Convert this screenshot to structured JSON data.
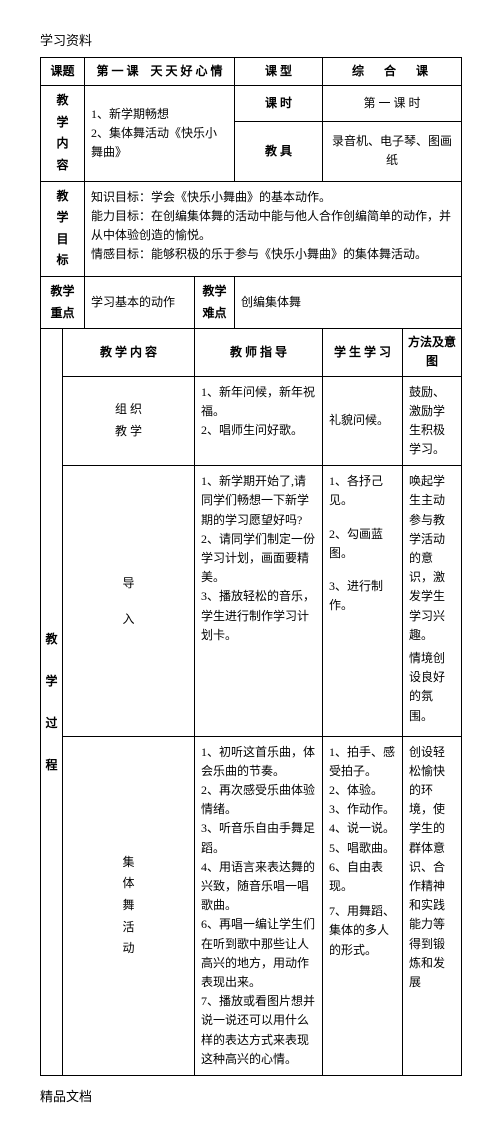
{
  "header": "学习资料",
  "footer": "精品文档",
  "row_keti": {
    "label": "课题",
    "title": "第 一 课　天 天 好 心 情",
    "kexing_label": "课 型",
    "kexing_value": "综　合　课"
  },
  "row_neirong": {
    "label": [
      "教",
      "学",
      "内",
      "容"
    ],
    "items": [
      "1、新学期畅想",
      "2、集体舞活动《快乐小舞曲》"
    ],
    "keshi_label": "课 时",
    "keshi_value": "第 一 课 时",
    "jiaoju_label": "教 具",
    "jiaoju_value": "录音机、电子琴、图画纸"
  },
  "row_mubiao": {
    "label": [
      "教",
      "学",
      "目",
      "标"
    ],
    "lines": [
      "知识目标：学会《快乐小舞曲》的基本动作。",
      "能力目标：在创编集体舞的活动中能与他人合作创编简单的动作，并从中体验创造的愉悦。",
      "情感目标：能够积极的乐于参与《快乐小舞曲》的集体舞活动。"
    ]
  },
  "row_zhongdian": {
    "label": [
      "教学",
      "重点"
    ],
    "value": "学习基本的动作",
    "nandian_label": [
      "教学",
      "难点"
    ],
    "nandian_value": "创编集体舞"
  },
  "process_header": {
    "c1": "教 学 内 容",
    "c2": "教 师 指 导",
    "c3": "学 生 学 习",
    "c4": "方法及意图"
  },
  "proc_label": [
    "教",
    "学",
    "过",
    "程"
  ],
  "sec1": {
    "label": [
      "组 织",
      "教 学"
    ],
    "teacher": [
      "1、新年问候，新年祝福。",
      "2、唱师生问好歌。"
    ],
    "student": "礼貌问候。",
    "method": "鼓励、激励学生积极学习。"
  },
  "sec2": {
    "label": [
      "导",
      "入"
    ],
    "teacher": [
      "1、新学期开始了,请同学们畅想一下新学期的学习愿望好吗?",
      "2、请同学们制定一份学习计划，画面要精美。",
      "3、播放轻松的音乐，学生进行制作学习计划卡。"
    ],
    "student": [
      "1、各抒己见。",
      "2、勾画蓝图。",
      "3、进行制作。"
    ],
    "method": "唤起学生主动参与教学活动的意识，激发学生学习兴趣。\n情境创设良好的氛围。"
  },
  "sec3": {
    "label": [
      "集",
      "体",
      "舞",
      "活",
      "动"
    ],
    "teacher": [
      "1、初听这首乐曲，体会乐曲的节奏。",
      "2、再次感受乐曲体验情绪。",
      "3、听音乐自由手舞足蹈。",
      "4、用语言来表达舞的兴致，随音乐唱一唱歌曲。",
      "6、再唱一编让学生们在听到歌中那些让人高兴的地方，用动作表现出来。",
      "7、播放或看图片想并说一说还可以用什么样的表达方式来表现这种高兴的心情。"
    ],
    "student": [
      "1、拍手、感受拍子。",
      "2、体验。",
      "3、作动作。",
      "4、说一说。",
      "5、唱歌曲。",
      "6、自由表现。",
      "7、用舞蹈、集体的多人的形式。"
    ],
    "method": "创设轻松愉快的环境，使学生的群体意识、合作精神和实践能力等得到锻炼和发展"
  }
}
